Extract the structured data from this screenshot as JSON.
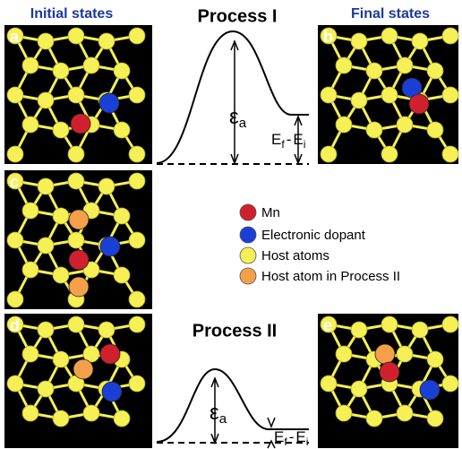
{
  "headers": {
    "initial": "Initial states",
    "final": "Final states"
  },
  "panel_labels": [
    "a",
    "b",
    "c",
    "d",
    "e"
  ],
  "process_1": {
    "title": "Process I",
    "barrier": {
      "symbol": "ε",
      "subscript": "a"
    },
    "energy_difference": {
      "e1": "E",
      "s1": "f",
      "minus": "-",
      "e2": "E",
      "s2": "i"
    }
  },
  "process_2": {
    "title": "Process II",
    "barrier": {
      "symbol": "ε",
      "subscript": "a"
    },
    "energy_difference": {
      "e1": "E",
      "s1": "f",
      "minus": "-",
      "e2": "E",
      "s2": "i"
    }
  },
  "legend": [
    {
      "label": "Mn",
      "color": "#d0202e"
    },
    {
      "label": "Electronic dopant",
      "color": "#1a3fd6"
    },
    {
      "label": "Host atoms",
      "color": "#f5f056"
    },
    {
      "label": "Host atom in Process II",
      "color": "#f4a04a"
    }
  ]
}
